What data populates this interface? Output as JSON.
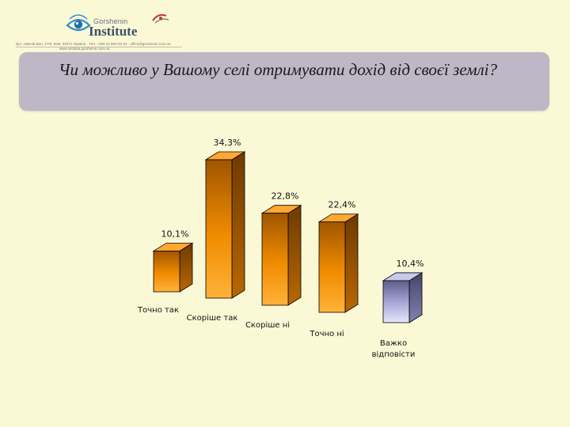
{
  "header": {
    "logo_top": "Gorshenin",
    "logo_main": "Institute",
    "address_line1": "вул. Нижній Вал, 17/8, Київ, 04071 Україна · Тел. +380 44 594-03-32 · office@gorshenin.com.ua",
    "address_line2": "www.institute.gorshenin.com.ua"
  },
  "title": "Чи можливо у Вашому селі отримувати дохід від своєї землі?",
  "chart_data": {
    "type": "bar",
    "categories": [
      "Точно так",
      "Скоріше так",
      "Скоріше ні",
      "Точно ні",
      "Важко відповісти"
    ],
    "values": [
      10.1,
      34.3,
      22.8,
      22.4,
      10.4
    ],
    "value_labels": [
      "10,1%",
      "34,3%",
      "22,8%",
      "22,4%",
      "10,4%"
    ],
    "category_lines": [
      [
        "Точно так"
      ],
      [
        "Скоріше так"
      ],
      [
        "Скоріше ні"
      ],
      [
        "Точно ні"
      ],
      [
        "Важко",
        "відповісти"
      ]
    ],
    "bar_colors": [
      "#f08c00",
      "#f08c00",
      "#f08c00",
      "#f08c00",
      "#a4a4d6"
    ],
    "ylim": [
      0,
      40
    ],
    "grid": false,
    "legend": "none",
    "style": "3d"
  }
}
